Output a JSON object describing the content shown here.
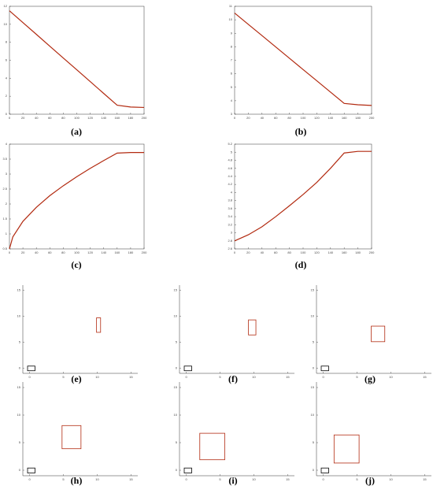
{
  "chart_data": [
    {
      "type": "line",
      "caption": "(a)",
      "x": [
        0,
        20,
        40,
        60,
        80,
        100,
        120,
        140,
        160,
        180,
        200
      ],
      "xlim": [
        0,
        200
      ],
      "xticks": [
        0,
        20,
        40,
        60,
        80,
        100,
        120,
        140,
        160,
        180,
        200
      ],
      "ylim": [
        0,
        12
      ],
      "yticks": [
        0,
        2,
        4,
        6,
        8,
        10,
        12
      ],
      "color": "#b22a10",
      "values": [
        11.5,
        10.19,
        8.88,
        7.56,
        6.25,
        4.94,
        3.63,
        2.31,
        1.0,
        0.8,
        0.75
      ]
    },
    {
      "type": "line",
      "caption": "(b)",
      "x": [
        0,
        20,
        40,
        60,
        80,
        100,
        120,
        140,
        160,
        180,
        200
      ],
      "xlim": [
        0,
        200
      ],
      "xticks": [
        0,
        20,
        40,
        60,
        80,
        100,
        120,
        140,
        160,
        180,
        200
      ],
      "ylim": [
        3,
        11
      ],
      "yticks": [
        3,
        4,
        5,
        6,
        7,
        8,
        9,
        10,
        11
      ],
      "color": "#b22a10",
      "values": [
        10.5,
        9.66,
        8.83,
        7.99,
        7.15,
        6.31,
        5.48,
        4.64,
        3.8,
        3.7,
        3.65
      ]
    },
    {
      "type": "line",
      "caption": "(c)",
      "x": [
        0,
        5,
        20,
        40,
        60,
        80,
        100,
        120,
        140,
        160,
        180,
        200
      ],
      "xlim": [
        0,
        200
      ],
      "xticks": [
        0,
        20,
        40,
        60,
        80,
        100,
        120,
        140,
        160,
        180,
        200
      ],
      "ylim": [
        0.5,
        4
      ],
      "yticks": [
        0.5,
        1,
        1.5,
        2,
        2.5,
        3,
        3.5,
        4
      ],
      "color": "#b22a10",
      "values": [
        0.5,
        0.9,
        1.42,
        1.89,
        2.28,
        2.61,
        2.91,
        3.19,
        3.45,
        3.7,
        3.72,
        3.72
      ]
    },
    {
      "type": "line",
      "caption": "(d)",
      "x": [
        0,
        20,
        40,
        60,
        80,
        100,
        120,
        140,
        160,
        180,
        200
      ],
      "xlim": [
        0,
        200
      ],
      "xticks": [
        0,
        20,
        40,
        60,
        80,
        100,
        120,
        140,
        160,
        180,
        200
      ],
      "ylim": [
        2.6,
        5.2
      ],
      "yticks": [
        2.6,
        2.8,
        3,
        3.2,
        3.4,
        3.6,
        3.8,
        4,
        4.2,
        4.4,
        4.6,
        4.8,
        5,
        5.2
      ],
      "color": "#b22a10",
      "values": [
        2.8,
        2.95,
        3.15,
        3.4,
        3.67,
        3.95,
        4.25,
        4.6,
        4.98,
        5.02,
        5.02
      ]
    },
    {
      "type": "rectangles",
      "caption": "(e)",
      "xlim": [
        -1,
        16
      ],
      "xticks": [
        0,
        5,
        10,
        15
      ],
      "ylim": [
        -1,
        16
      ],
      "yticks": [
        0,
        5,
        10,
        15
      ],
      "shapes": [
        {
          "color": "#000000",
          "x": [
            -0.3,
            0.8
          ],
          "y": [
            -0.5,
            0.4
          ]
        },
        {
          "color": "#b22a10",
          "x": [
            9.9,
            10.5
          ],
          "y": [
            6.9,
            9.7
          ]
        }
      ]
    },
    {
      "type": "rectangles",
      "caption": "(f)",
      "xlim": [
        -1,
        16
      ],
      "xticks": [
        0,
        5,
        10,
        15
      ],
      "ylim": [
        -1,
        16
      ],
      "yticks": [
        0,
        5,
        10,
        15
      ],
      "shapes": [
        {
          "color": "#000000",
          "x": [
            -0.3,
            0.8
          ],
          "y": [
            -0.5,
            0.4
          ]
        },
        {
          "color": "#b22a10",
          "x": [
            9.2,
            10.3
          ],
          "y": [
            6.4,
            9.3
          ]
        }
      ]
    },
    {
      "type": "rectangles",
      "caption": "(g)",
      "xlim": [
        -1,
        16
      ],
      "xticks": [
        0,
        5,
        10,
        15
      ],
      "ylim": [
        -1,
        16
      ],
      "yticks": [
        0,
        5,
        10,
        15
      ],
      "shapes": [
        {
          "color": "#000000",
          "x": [
            -0.3,
            0.8
          ],
          "y": [
            -0.5,
            0.4
          ]
        },
        {
          "color": "#b22a10",
          "x": [
            7.1,
            9.1
          ],
          "y": [
            5.1,
            8.1
          ]
        }
      ]
    },
    {
      "type": "rectangles",
      "caption": "(h)",
      "xlim": [
        -1,
        16
      ],
      "xticks": [
        0,
        5,
        10,
        15
      ],
      "ylim": [
        -1,
        16
      ],
      "yticks": [
        0,
        5,
        10,
        15
      ],
      "shapes": [
        {
          "color": "#000000",
          "x": [
            -0.3,
            0.8
          ],
          "y": [
            -0.5,
            0.4
          ]
        },
        {
          "color": "#b22a10",
          "x": [
            4.8,
            7.6
          ],
          "y": [
            3.9,
            8.1
          ]
        }
      ]
    },
    {
      "type": "rectangles",
      "caption": "(i)",
      "xlim": [
        -1,
        16
      ],
      "xticks": [
        0,
        5,
        10,
        15
      ],
      "ylim": [
        -1,
        16
      ],
      "yticks": [
        0,
        5,
        10,
        15
      ],
      "shapes": [
        {
          "color": "#000000",
          "x": [
            -0.3,
            0.8
          ],
          "y": [
            -0.5,
            0.4
          ]
        },
        {
          "color": "#b22a10",
          "x": [
            2.0,
            5.7
          ],
          "y": [
            1.9,
            6.7
          ]
        }
      ]
    },
    {
      "type": "rectangles",
      "caption": "(j)",
      "xlim": [
        -1,
        16
      ],
      "xticks": [
        0,
        5,
        10,
        15
      ],
      "ylim": [
        -1,
        16
      ],
      "yticks": [
        0,
        5,
        10,
        15
      ],
      "shapes": [
        {
          "color": "#000000",
          "x": [
            -0.3,
            0.8
          ],
          "y": [
            -0.5,
            0.4
          ]
        },
        {
          "color": "#b22a10",
          "x": [
            1.6,
            5.3
          ],
          "y": [
            1.3,
            6.4
          ]
        }
      ]
    }
  ]
}
